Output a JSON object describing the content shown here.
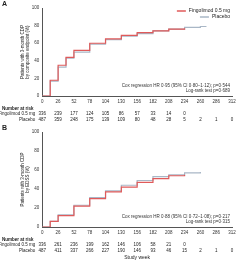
{
  "chart_data": [
    {
      "type": "line",
      "panel": "A",
      "y_label": "Patients with 3-month CDP by composite endpoint (%)",
      "xlim": [
        0,
        312
      ],
      "xticks": [
        0,
        26,
        52,
        78,
        104,
        130,
        156,
        182,
        208,
        234,
        260,
        286,
        312
      ],
      "ylim": [
        0,
        100
      ],
      "yticks": [
        0,
        20,
        40,
        60,
        80,
        100
      ],
      "grid": false,
      "legend": "upper right",
      "line_style": "step",
      "series": [
        {
          "name": "Fingolimod 0.5 mg",
          "color": "#e05a5a",
          "x": [
            0,
            13,
            26,
            39,
            52,
            78,
            104,
            130,
            156,
            182,
            208,
            234
          ],
          "values": [
            0,
            18,
            35,
            44,
            52,
            60,
            65,
            69,
            72,
            74,
            76,
            77
          ]
        },
        {
          "name": "Placebo",
          "color": "#a9b7c6",
          "x": [
            0,
            13,
            26,
            39,
            52,
            78,
            104,
            130,
            156,
            182,
            208,
            234,
            260,
            270
          ],
          "values": [
            0,
            17,
            33,
            43,
            50,
            59,
            64,
            68,
            71,
            74,
            76,
            78,
            79,
            79
          ]
        }
      ],
      "annotations": [
        "Cox regression HR 0·95 (95% CI 0·80–1·12); p=0·544",
        "Log-rank test p=0·689"
      ],
      "number_at_risk": {
        "title": "Number at risk",
        "rows": [
          {
            "name": "Fingolimod 0.5 mg",
            "values": [
              336,
              239,
              177,
              124,
              105,
              86,
              57,
              33,
              14,
              0
            ]
          },
          {
            "name": "Placebo",
            "values": [
              487,
              359,
              248,
              175,
              139,
              109,
              80,
              48,
              28,
              5,
              2,
              1,
              0
            ]
          }
        ]
      }
    },
    {
      "type": "line",
      "panel": "B",
      "y_label": "Patients with 3-month CDP by EDSS (%)",
      "x_label": "Study week",
      "xlim": [
        0,
        312
      ],
      "xticks": [
        0,
        26,
        52,
        78,
        104,
        130,
        156,
        182,
        208,
        234,
        260,
        286,
        312
      ],
      "ylim": [
        0,
        100
      ],
      "yticks": [
        0,
        20,
        40,
        60,
        80,
        100
      ],
      "grid": false,
      "line_style": "step",
      "series": [
        {
          "name": "Fingolimod 0.5 mg",
          "color": "#e05a5a",
          "x": [
            0,
            13,
            26,
            52,
            78,
            104,
            130,
            156,
            182,
            208,
            234
          ],
          "values": [
            0,
            6,
            12,
            22,
            30,
            37,
            42,
            47,
            51,
            54,
            55
          ]
        },
        {
          "name": "Placebo",
          "color": "#a9b7c6",
          "x": [
            0,
            13,
            26,
            52,
            78,
            104,
            130,
            156,
            182,
            208,
            234,
            260
          ],
          "values": [
            0,
            6,
            13,
            23,
            31,
            38,
            44,
            49,
            53,
            55,
            57,
            58
          ]
        }
      ],
      "annotations": [
        "Cox regression HR 0·88 (95% CI 0·72–1·08); p=0·217",
        "Log-rank test p=0·315"
      ],
      "number_at_risk": {
        "title": "Number at risk",
        "rows": [
          {
            "name": "Fingolimod 0.5 mg",
            "values": [
              336,
              261,
              236,
              199,
              162,
              146,
              106,
              58,
              21,
              0
            ]
          },
          {
            "name": "Placebo",
            "values": [
              487,
              411,
              337,
              266,
              227,
              190,
              146,
              93,
              46,
              15,
              2,
              1,
              0
            ]
          }
        ]
      }
    }
  ]
}
